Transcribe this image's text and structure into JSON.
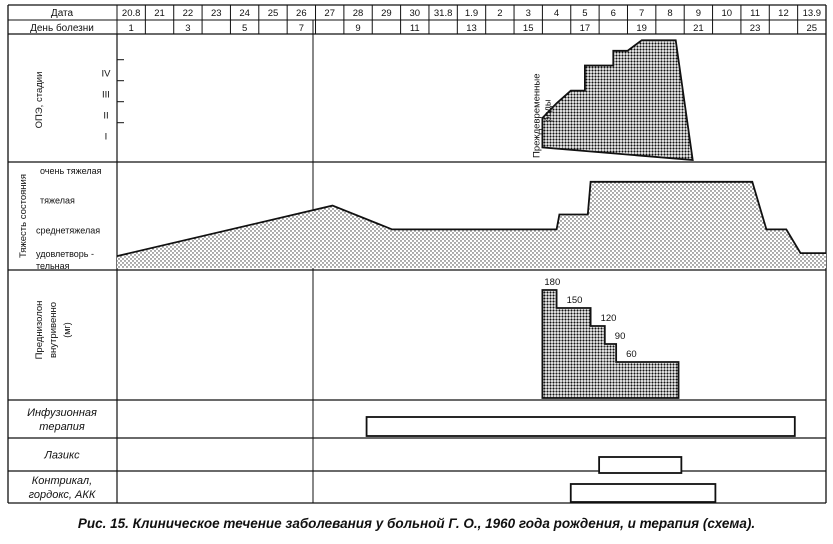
{
  "header": {
    "row1_label": "Дата",
    "row2_label": "День болезни",
    "dates": [
      "20.8",
      "21",
      "22",
      "23",
      "24",
      "25",
      "26",
      "27",
      "28",
      "29",
      "30",
      "31.8",
      "1.9",
      "2",
      "3",
      "4",
      "5",
      "6",
      "7",
      "8",
      "9",
      "10",
      "11",
      "12",
      "13.9"
    ],
    "days": [
      {
        "col": 0,
        "text": "1"
      },
      {
        "col": 2,
        "text": "3"
      },
      {
        "col": 4,
        "text": "5"
      },
      {
        "col": 6,
        "text": "7"
      },
      {
        "col": 8,
        "text": "9"
      },
      {
        "col": 10,
        "text": "11"
      },
      {
        "col": 12,
        "text": "13"
      },
      {
        "col": 14,
        "text": "15"
      },
      {
        "col": 16,
        "text": "17"
      },
      {
        "col": 18,
        "text": "19"
      },
      {
        "col": 20,
        "text": "21"
      },
      {
        "col": 22,
        "text": "23"
      },
      {
        "col": 24,
        "text": "25"
      }
    ]
  },
  "ope_panel": {
    "ylabel": "ОПЭ, стадии",
    "levels": [
      "I",
      "II",
      "III",
      "IV"
    ],
    "annotation": "Преждевременные роды"
  },
  "severity_panel": {
    "ylabel": "Тяжесть состояния",
    "levels": [
      {
        "value": 1,
        "text": "удовлетворь -"
      },
      {
        "value": 1,
        "text2": "тельная"
      },
      {
        "value": 2,
        "text": "среднетяжелая"
      },
      {
        "value": 3,
        "text": "тяжелая"
      },
      {
        "value": 4,
        "text": "очень тяжелая"
      }
    ]
  },
  "prednisolone_panel": {
    "ylabel_line1": "Преднизолон",
    "ylabel_line2": "внутривенно",
    "ylabel_line3": "(мг)"
  },
  "therapy_rows": [
    {
      "line1": "Инфузионная",
      "line2": "терапия"
    },
    {
      "line1": "Лазикс",
      "line2": ""
    },
    {
      "line1": "Контрикал,",
      "line2": "гордокс, АКК"
    }
  ],
  "caption": "Рис. 15. Клиническое течение заболевания у больной Г. О., 1960 года рождения, и терапия (схема).",
  "chart_data": [
    {
      "type": "area",
      "name": "ope_stage",
      "ylabel": "ОПЭ, стадии",
      "x_unit": "day column (0 = 20.8)",
      "points": [
        [
          15.0,
          0.6
        ],
        [
          15.0,
          2.0
        ],
        [
          15.5,
          2.7
        ],
        [
          16.0,
          3.3
        ],
        [
          16.5,
          3.3
        ],
        [
          16.5,
          4.5
        ],
        [
          17.5,
          4.5
        ],
        [
          17.5,
          5.2
        ],
        [
          18.0,
          5.2
        ],
        [
          18.5,
          5.7
        ],
        [
          19.7,
          5.7
        ],
        [
          20.3,
          0
        ]
      ],
      "ylim": [
        0,
        6
      ]
    },
    {
      "type": "area",
      "name": "severity",
      "ylabel": "Тяжесть состояния",
      "x_unit": "day column",
      "points": [
        [
          0,
          1.1
        ],
        [
          7.6,
          2.8
        ],
        [
          9.7,
          2.0
        ],
        [
          15.5,
          2.0
        ],
        [
          15.6,
          2.5
        ],
        [
          16.6,
          2.5
        ],
        [
          16.7,
          3.6
        ],
        [
          22.4,
          3.6
        ],
        [
          22.9,
          2.0
        ],
        [
          23.6,
          2.0
        ],
        [
          24.1,
          1.2
        ],
        [
          25,
          1.2
        ]
      ],
      "ylim": [
        0.7,
        4.2
      ]
    },
    {
      "type": "bar",
      "name": "prednisolone",
      "ylabel": "Преднизолон внутривенно (мг)",
      "steps": [
        {
          "x0": 15.0,
          "x1": 15.5,
          "value": 180,
          "label": "180"
        },
        {
          "x0": 15.5,
          "x1": 16.7,
          "value": 150,
          "label": "150"
        },
        {
          "x0": 16.7,
          "x1": 17.2,
          "value": 120,
          "label": "120"
        },
        {
          "x0": 17.2,
          "x1": 17.6,
          "value": 90,
          "label": "90"
        },
        {
          "x0": 17.6,
          "x1": 19.8,
          "value": 60,
          "label": "60"
        }
      ],
      "ylim": [
        0,
        200
      ]
    },
    {
      "type": "table",
      "name": "therapy_periods",
      "bars": [
        {
          "row": 0,
          "start": 8.8,
          "end": 23.9
        },
        {
          "row": 1,
          "start": 17.0,
          "end": 19.9
        },
        {
          "row": 2,
          "start": 16.0,
          "end": 21.1
        }
      ]
    }
  ]
}
